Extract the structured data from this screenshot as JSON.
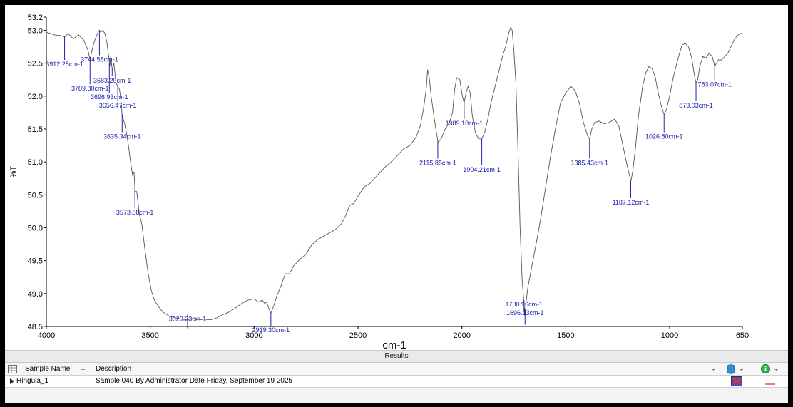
{
  "chart_data": {
    "type": "line",
    "xlabel": "cm-1",
    "ylabel": "%T",
    "xlim": [
      4000,
      650
    ],
    "ylim": [
      48.5,
      53.2
    ],
    "x_ticks": [
      4000,
      3500,
      3000,
      2500,
      2000,
      1500,
      1000,
      650
    ],
    "x_tick_labels": [
      "4000",
      "3500",
      "3000",
      "2500",
      "2000",
      "1500",
      "1000",
      "650"
    ],
    "y_ticks": [
      48.5,
      49.0,
      49.5,
      50.0,
      50.5,
      51.0,
      51.5,
      52.0,
      52.5,
      53.0,
      53.2
    ],
    "y_tick_labels": [
      "48.5",
      "49.0",
      "49.5",
      "50.0",
      "50.5",
      "51.0",
      "51.5",
      "52.0",
      "52.5",
      "53.0",
      "53.2"
    ],
    "grid": false,
    "series": [
      {
        "color": "#555555",
        "points": [
          [
            4000,
            52.97
          ],
          [
            3960,
            52.93
          ],
          [
            3930,
            52.92
          ],
          [
            3912,
            52.9
          ],
          [
            3895,
            52.95
          ],
          [
            3870,
            52.87
          ],
          [
            3845,
            52.93
          ],
          [
            3820,
            52.85
          ],
          [
            3800,
            52.7
          ],
          [
            3790,
            52.55
          ],
          [
            3780,
            52.7
          ],
          [
            3770,
            52.82
          ],
          [
            3760,
            52.9
          ],
          [
            3750,
            52.98
          ],
          [
            3745,
            53.0
          ],
          [
            3738,
            52.97
          ],
          [
            3728,
            53.0
          ],
          [
            3718,
            52.95
          ],
          [
            3708,
            52.8
          ],
          [
            3700,
            52.6
          ],
          [
            3695,
            52.45
          ],
          [
            3690,
            52.6
          ],
          [
            3683,
            52.4
          ],
          [
            3675,
            52.5
          ],
          [
            3665,
            52.2
          ],
          [
            3656,
            52.15
          ],
          [
            3648,
            52.1
          ],
          [
            3640,
            51.9
          ],
          [
            3635,
            51.7
          ],
          [
            3625,
            51.6
          ],
          [
            3615,
            51.45
          ],
          [
            3605,
            51.25
          ],
          [
            3595,
            51.0
          ],
          [
            3585,
            50.8
          ],
          [
            3578,
            50.85
          ],
          [
            3573,
            50.55
          ],
          [
            3565,
            50.55
          ],
          [
            3552,
            50.2
          ],
          [
            3540,
            50.05
          ],
          [
            3525,
            49.65
          ],
          [
            3510,
            49.3
          ],
          [
            3495,
            49.05
          ],
          [
            3480,
            48.9
          ],
          [
            3460,
            48.8
          ],
          [
            3440,
            48.72
          ],
          [
            3410,
            48.66
          ],
          [
            3380,
            48.63
          ],
          [
            3350,
            48.61
          ],
          [
            3320,
            48.6
          ],
          [
            3300,
            48.62
          ],
          [
            3270,
            48.6
          ],
          [
            3240,
            48.61
          ],
          [
            3210,
            48.6
          ],
          [
            3180,
            48.63
          ],
          [
            3150,
            48.68
          ],
          [
            3120,
            48.72
          ],
          [
            3090,
            48.78
          ],
          [
            3060,
            48.85
          ],
          [
            3030,
            48.9
          ],
          [
            3000,
            48.92
          ],
          [
            2980,
            48.87
          ],
          [
            2960,
            48.9
          ],
          [
            2950,
            48.85
          ],
          [
            2940,
            48.87
          ],
          [
            2930,
            48.78
          ],
          [
            2919,
            48.7
          ],
          [
            2905,
            48.82
          ],
          [
            2890,
            48.97
          ],
          [
            2870,
            49.12
          ],
          [
            2850,
            49.3
          ],
          [
            2830,
            49.3
          ],
          [
            2810,
            49.42
          ],
          [
            2780,
            49.52
          ],
          [
            2750,
            49.6
          ],
          [
            2720,
            49.75
          ],
          [
            2690,
            49.83
          ],
          [
            2650,
            49.9
          ],
          [
            2610,
            49.97
          ],
          [
            2580,
            50.06
          ],
          [
            2560,
            50.18
          ],
          [
            2540,
            50.34
          ],
          [
            2520,
            50.37
          ],
          [
            2500,
            50.48
          ],
          [
            2470,
            50.62
          ],
          [
            2440,
            50.68
          ],
          [
            2400,
            50.82
          ],
          [
            2370,
            50.92
          ],
          [
            2340,
            51.0
          ],
          [
            2310,
            51.1
          ],
          [
            2280,
            51.2
          ],
          [
            2250,
            51.25
          ],
          [
            2220,
            51.38
          ],
          [
            2200,
            51.55
          ],
          [
            2185,
            51.8
          ],
          [
            2172,
            52.1
          ],
          [
            2165,
            52.4
          ],
          [
            2158,
            52.3
          ],
          [
            2148,
            52.0
          ],
          [
            2135,
            51.7
          ],
          [
            2123,
            51.45
          ],
          [
            2115,
            51.3
          ],
          [
            2100,
            51.35
          ],
          [
            2080,
            51.5
          ],
          [
            2060,
            51.6
          ],
          [
            2045,
            51.75
          ],
          [
            2035,
            52.1
          ],
          [
            2025,
            52.28
          ],
          [
            2010,
            52.25
          ],
          [
            1998,
            52.0
          ],
          [
            1989,
            51.9
          ],
          [
            1980,
            52.05
          ],
          [
            1970,
            52.15
          ],
          [
            1960,
            52.05
          ],
          [
            1950,
            51.7
          ],
          [
            1935,
            51.45
          ],
          [
            1920,
            51.35
          ],
          [
            1904,
            51.35
          ],
          [
            1890,
            51.45
          ],
          [
            1875,
            51.65
          ],
          [
            1860,
            51.9
          ],
          [
            1840,
            52.15
          ],
          [
            1820,
            52.4
          ],
          [
            1805,
            52.6
          ],
          [
            1790,
            52.75
          ],
          [
            1775,
            52.95
          ],
          [
            1765,
            53.05
          ],
          [
            1758,
            53.0
          ],
          [
            1750,
            52.7
          ],
          [
            1740,
            52.2
          ],
          [
            1730,
            51.2
          ],
          [
            1720,
            50.0
          ],
          [
            1710,
            49.2
          ],
          [
            1701,
            48.85
          ],
          [
            1696,
            48.65
          ],
          [
            1690,
            48.9
          ],
          [
            1682,
            49.1
          ],
          [
            1670,
            49.3
          ],
          [
            1655,
            49.55
          ],
          [
            1640,
            49.8
          ],
          [
            1620,
            50.15
          ],
          [
            1600,
            50.55
          ],
          [
            1575,
            51.05
          ],
          [
            1550,
            51.5
          ],
          [
            1525,
            51.9
          ],
          [
            1500,
            52.05
          ],
          [
            1475,
            52.15
          ],
          [
            1455,
            52.08
          ],
          [
            1435,
            51.9
          ],
          [
            1415,
            51.6
          ],
          [
            1395,
            51.4
          ],
          [
            1385,
            51.35
          ],
          [
            1375,
            51.5
          ],
          [
            1360,
            51.6
          ],
          [
            1340,
            51.62
          ],
          [
            1315,
            51.58
          ],
          [
            1290,
            51.6
          ],
          [
            1265,
            51.65
          ],
          [
            1245,
            51.55
          ],
          [
            1225,
            51.25
          ],
          [
            1205,
            50.95
          ],
          [
            1190,
            50.75
          ],
          [
            1187,
            50.7
          ],
          [
            1178,
            50.85
          ],
          [
            1165,
            51.2
          ],
          [
            1150,
            51.7
          ],
          [
            1130,
            52.15
          ],
          [
            1115,
            52.35
          ],
          [
            1100,
            52.45
          ],
          [
            1085,
            52.42
          ],
          [
            1070,
            52.3
          ],
          [
            1055,
            52.05
          ],
          [
            1040,
            51.85
          ],
          [
            1027,
            51.72
          ],
          [
            1015,
            51.8
          ],
          [
            1000,
            52.0
          ],
          [
            985,
            52.25
          ],
          [
            970,
            52.45
          ],
          [
            955,
            52.62
          ],
          [
            940,
            52.78
          ],
          [
            925,
            52.8
          ],
          [
            910,
            52.75
          ],
          [
            895,
            52.6
          ],
          [
            880,
            52.3
          ],
          [
            873,
            52.2
          ],
          [
            865,
            52.25
          ],
          [
            855,
            52.45
          ],
          [
            840,
            52.6
          ],
          [
            825,
            52.58
          ],
          [
            810,
            52.65
          ],
          [
            795,
            52.6
          ],
          [
            783,
            52.45
          ],
          [
            775,
            52.5
          ],
          [
            765,
            52.55
          ],
          [
            750,
            52.55
          ],
          [
            735,
            52.6
          ],
          [
            720,
            52.65
          ],
          [
            705,
            52.75
          ],
          [
            690,
            52.85
          ],
          [
            675,
            52.92
          ],
          [
            660,
            52.95
          ],
          [
            650,
            52.96
          ]
        ]
      }
    ],
    "peak_labels": [
      {
        "wavenumber": 3912.25,
        "text": "3912.25cm-1",
        "t": 52.55
      },
      {
        "wavenumber": 3789.8,
        "text": "3789.80cm-1",
        "t": 52.18
      },
      {
        "wavenumber": 3744.58,
        "text": "3744.58cm-1",
        "t": 52.62
      },
      {
        "wavenumber": 3683.29,
        "text": "3683.29cm-1",
        "t": 52.3
      },
      {
        "wavenumber": 3696.93,
        "text": "3696.93cm-1",
        "t": 52.05
      },
      {
        "wavenumber": 3656.47,
        "text": "3656.47cm-1",
        "t": 51.92
      },
      {
        "wavenumber": 3635.34,
        "text": "3635.34cm-1",
        "t": 51.45
      },
      {
        "wavenumber": 3573.88,
        "text": "3573.88cm-1",
        "t": 50.3
      },
      {
        "wavenumber": 3320.33,
        "text": "3320.33cm-1",
        "t": 48.68
      },
      {
        "wavenumber": 2919.3,
        "text": "2919.30cm-1",
        "t": 48.51
      },
      {
        "wavenumber": 2115.85,
        "text": "2115.85cm-1",
        "t": 51.05
      },
      {
        "wavenumber": 1989.1,
        "text": "1989.10cm-1",
        "t": 51.65
      },
      {
        "wavenumber": 1904.21,
        "text": "1904.21cm-1",
        "t": 50.95
      },
      {
        "wavenumber": 1700.96,
        "text": "1700.96cm-1",
        "t": 48.9
      },
      {
        "wavenumber": 1696.13,
        "text": "1696.13cm-1",
        "t": 48.77
      },
      {
        "wavenumber": 1385.43,
        "text": "1385.43cm-1",
        "t": 51.05
      },
      {
        "wavenumber": 1187.12,
        "text": "1187.12cm-1",
        "t": 50.45
      },
      {
        "wavenumber": 1026.8,
        "text": "1026.80cm-1",
        "t": 51.45
      },
      {
        "wavenumber": 873.03,
        "text": "873.03cm-1",
        "t": 51.92
      },
      {
        "wavenumber": 783.07,
        "text": "783.07cm-1",
        "t": 52.24
      }
    ]
  },
  "results": {
    "title": "Results",
    "columns": {
      "sample_name": "Sample Name",
      "description": "Description"
    },
    "rows": [
      {
        "sample_name": "Hingula_1",
        "description": "Sample 040 By Administrator Date Friday, September 19 2025"
      }
    ]
  },
  "icons": {
    "grid": "grid-icon",
    "pin": "pin-icon",
    "row_arrow": "row-pointer-icon",
    "database": "database-icon",
    "info": "info-icon",
    "stop": "stop-icon",
    "disabled": "disabled-icon"
  },
  "colors": {
    "spectrum": "#555555",
    "peak_label": "#1b1bb0",
    "peak_marker": "#2222aa"
  }
}
